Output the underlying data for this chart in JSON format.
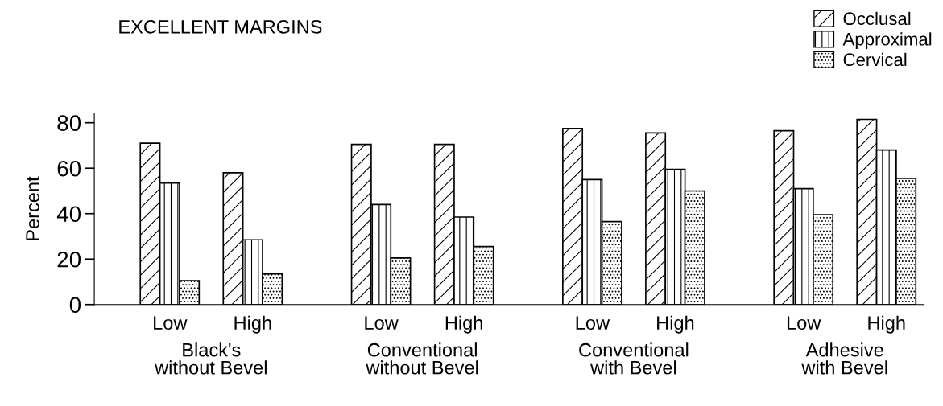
{
  "chart_data": {
    "type": "bar",
    "title": "EXCELLENT MARGINS",
    "ylabel": "Percent",
    "categories": [
      "Low",
      "High",
      "Low",
      "High",
      "Low",
      "High",
      "Low",
      "High"
    ],
    "annotations": [
      "Black's\nwithout Bevel",
      "Conventional\nwithout Bevel",
      "Conventional\nwith Bevel",
      "Adhesive\nwith Bevel"
    ],
    "series": [
      {
        "name": "Occlusal",
        "color": "#000000",
        "values": [
          71,
          58,
          70.5,
          70.5,
          77.5,
          75.5,
          76.5,
          81.5
        ]
      },
      {
        "name": "Approximal",
        "color": "#000000",
        "values": [
          53.5,
          28.5,
          44,
          38.5,
          55,
          59.5,
          51,
          68
        ]
      },
      {
        "name": "Cervical",
        "color": "#000000",
        "values": [
          10.5,
          13.5,
          20.5,
          25.5,
          36.5,
          50,
          39.5,
          55.5
        ]
      }
    ],
    "ylim": [
      0,
      84
    ],
    "yticks": [
      0,
      20,
      40,
      60,
      80
    ],
    "grid": false,
    "legend": "top right"
  }
}
